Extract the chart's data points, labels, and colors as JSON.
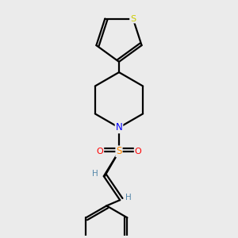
{
  "background_color": "#ebebeb",
  "bond_color": "#000000",
  "bond_width": 1.6,
  "atom_colors": {
    "S_thiophene": "#cccc00",
    "S_sulfonyl": "#ff8800",
    "N": "#0000ff",
    "O": "#ff0000",
    "H": "#5588aa",
    "C": "#000000"
  },
  "figsize": [
    3.0,
    3.0
  ],
  "dpi": 100
}
